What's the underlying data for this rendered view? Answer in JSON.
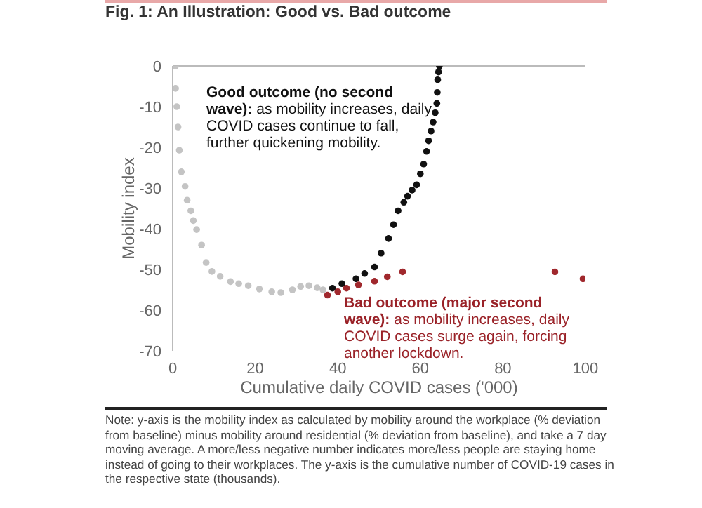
{
  "chart_data": {
    "type": "scatter",
    "title": "Fig. 1: An Illustration: Good vs. Bad outcome",
    "xlabel": "Cumulative  daily COVID cases ('000)",
    "ylabel": "Mobility index",
    "annotations": [
      "Good outcome  (no second wave): as mobility increases, daily COVID cases continue to fall, further quickening mobility.",
      "Bad outcome (major second wave): as mobility increases, daily COVID cases surge again, forcing another lockdown.",
      "Note: y-axis is the mobility index as calculated by mobility around the workplace (% deviation from baseline) minus mobility around residential (% deviation from baseline), and take a 7 day moving average. A more/less negative number indicates more/less people are staying home instead of going to their workplaces. The y-axis is the cumulative number of COVID-19 cases in the respective state (thousands)."
    ],
    "series": [
      {
        "color": "#c4c4c4",
        "x": [
          0.7,
          0.7,
          1,
          1.3,
          1.6,
          2.1,
          3,
          3.5,
          4.4,
          5,
          5.8,
          7,
          8.1,
          9.5,
          11.5,
          14,
          16,
          18.3,
          21,
          24,
          26.2,
          29,
          31,
          33,
          35,
          36.4
        ],
        "values": [
          0,
          -5.5,
          -10,
          -15,
          -20.7,
          -26,
          -29.6,
          -33,
          -35.6,
          -38,
          -40.2,
          -44,
          -48.3,
          -50.5,
          -51.7,
          -53,
          -53.5,
          -54,
          -54.8,
          -55.5,
          -55.7,
          -55,
          -54.2,
          -54,
          -54.5,
          -55
        ]
      },
      {
        "color": "#111111",
        "x": [
          38.7,
          41,
          44.4,
          46.5,
          48.9,
          50.5,
          52.3,
          53.5,
          54.6,
          56,
          56.9,
          58,
          59.1,
          60,
          60.8,
          61.5,
          62,
          62.6,
          63.1,
          63.6,
          64,
          64.1,
          64.2,
          64.4,
          64.6
        ],
        "values": [
          -54.6,
          -53.5,
          -52.3,
          -51,
          -49.4,
          -46,
          -42.4,
          -39,
          -35.6,
          -33.5,
          -32,
          -30.5,
          -29.2,
          -26.5,
          -24.1,
          -21,
          -18.4,
          -16,
          -13.8,
          -11.5,
          -9.2,
          -6.5,
          -3.4,
          -1.5,
          0
        ]
      },
      {
        "color": "#a0282d",
        "x": [
          37.5,
          40,
          42.1,
          45,
          48.9,
          52,
          55.7,
          92.6,
          99.4
        ],
        "values": [
          -56.3,
          -55.5,
          -54.6,
          -53.8,
          -52.9,
          -51.8,
          -50.6,
          -50.6,
          -52.3
        ]
      }
    ],
    "xlim": [
      0,
      100
    ],
    "xticks": [
      0,
      20,
      40,
      60,
      80,
      100
    ],
    "ylim": [
      -70,
      0
    ],
    "yticks": [
      0,
      -10,
      -20,
      -30,
      -40,
      -50,
      -60,
      -70
    ],
    "ref_lines": [
      {
        "axis": "y",
        "value": 0,
        "color": "#bbbbbb"
      }
    ],
    "marker": "circle",
    "legend": false,
    "grid": false
  }
}
